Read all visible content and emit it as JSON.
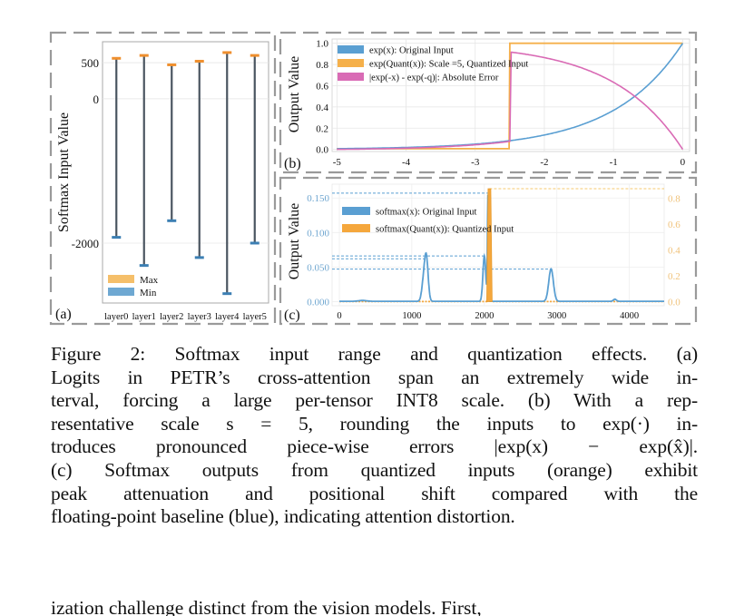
{
  "figure": {
    "panels": {
      "a": {
        "label": "(a)"
      },
      "b": {
        "label": "(b)"
      },
      "c": {
        "label": "(c)"
      }
    },
    "colors": {
      "blue": "#5a9fd2",
      "orange": "#f5a73c",
      "pink": "#d96bb5",
      "whisker": "#4a5560",
      "dash_border": "#9a9a9a",
      "grid": "#e6e6e6",
      "c_left_tick": "#6fa6d0",
      "c_right_tick": "#f0c27a"
    }
  },
  "chart_data": [
    {
      "id": "a",
      "type": "errorbar",
      "title": "",
      "xlabel": "",
      "ylabel": "Softmax Input Value",
      "categories": [
        "layer0",
        "layer1",
        "layer2",
        "layer3",
        "layer4",
        "layer5"
      ],
      "series": [
        {
          "name": "Max",
          "color": "#f5a73c",
          "values": [
            560,
            600,
            470,
            520,
            640,
            600
          ]
        },
        {
          "name": "Min",
          "color": "#4e8fc0",
          "values": [
            -1920,
            -2310,
            -1690,
            -2200,
            -2700,
            -2000
          ]
        }
      ],
      "yticks": [
        500,
        0,
        -2000
      ],
      "ytick_labels": [
        "500",
        "0",
        "-2000"
      ],
      "ylim": [
        -2830,
        790
      ],
      "grid": true,
      "legend": {
        "position": "bottom-left",
        "entries": [
          "Max",
          "Min"
        ]
      }
    },
    {
      "id": "b",
      "type": "line",
      "title": "",
      "xlabel": "",
      "ylabel": "Output Value",
      "xlim": [
        -5.07,
        0.1
      ],
      "ylim": [
        -0.02,
        1.04
      ],
      "xticks": [
        -5,
        -4,
        -3,
        -2,
        -1,
        0
      ],
      "xtick_labels": [
        "-5",
        "-4",
        "-3",
        "-2",
        "-1",
        "0"
      ],
      "yticks": [
        0.0,
        0.2,
        0.4,
        0.6,
        0.8,
        1.0
      ],
      "ytick_labels": [
        "0.0",
        "0.2",
        "0.4",
        "0.6",
        "0.8",
        "1.0"
      ],
      "grid": true,
      "series": [
        {
          "name": "exp(x): Original Input",
          "color": "#5a9fd2",
          "function": "exp(x)",
          "x": [
            -5,
            -4.5,
            -4,
            -3.5,
            -3,
            -2.5,
            -2,
            -1.5,
            -1,
            -0.5,
            0
          ],
          "y": [
            0.0067,
            0.0111,
            0.0183,
            0.0302,
            0.0498,
            0.0821,
            0.1353,
            0.2231,
            0.3679,
            0.6065,
            1.0
          ]
        },
        {
          "name": "exp(Quant(x)): Scale =5, Quantized Input",
          "color": "#f5b04a",
          "function": "step",
          "x": [
            -5,
            -2.51,
            -2.5,
            0
          ],
          "y": [
            0.0067,
            0.0067,
            1.0,
            1.0
          ]
        },
        {
          "name": "|exp(-x) - exp(-q)|: Absolute Error",
          "color": "#d96bb5",
          "function": "abs-error",
          "x": [
            -5,
            -4,
            -3,
            -2.51,
            -2.5,
            -2,
            -1.5,
            -1,
            -0.5,
            0
          ],
          "y": [
            0.0,
            0.0116,
            0.0431,
            0.0747,
            0.918,
            0.865,
            0.777,
            0.632,
            0.393,
            0.0
          ]
        }
      ],
      "legend": {
        "position": "top-left",
        "entries": [
          "exp(x): Original Input",
          "exp(Quant(x)): Scale =5, Quantized Input",
          "|exp(-x) - exp(-q)|: Absolute Error"
        ]
      }
    },
    {
      "id": "c",
      "type": "line",
      "title": "",
      "xlabel": "",
      "ylabel": "Output Value",
      "xlim": [
        -100,
        4480
      ],
      "ylim_left": [
        -0.006,
        0.17
      ],
      "ylim_right": [
        -0.032,
        0.91
      ],
      "xticks": [
        0,
        1000,
        2000,
        3000,
        4000
      ],
      "xtick_labels": [
        "0",
        "1000",
        "2000",
        "3000",
        "4000"
      ],
      "yticks_left": [
        0.0,
        0.05,
        0.1,
        0.15
      ],
      "ytick_labels_left": [
        "0.000",
        "0.050",
        "0.100",
        "0.150"
      ],
      "yticks_right": [
        0.0,
        0.2,
        0.4,
        0.6,
        0.8
      ],
      "ytick_labels_right": [
        "0.0",
        "0.2",
        "0.4",
        "0.6",
        "0.8"
      ],
      "grid": true,
      "series": [
        {
          "name": "softmax(x): Original Input",
          "color": "#5a9fd2",
          "axis": "left",
          "peaks": [
            {
              "x": 1200,
              "y": 0.062,
              "width": 35,
              "shoulder": 0.025
            },
            {
              "x": 2000,
              "y": 0.066,
              "width": 28,
              "shoulder": 0.0
            },
            {
              "x": 2050,
              "y": 0.157,
              "width": 10,
              "shoulder": 0.0
            },
            {
              "x": 2920,
              "y": 0.047,
              "width": 45,
              "shoulder": 0.0
            },
            {
              "x": 3800,
              "y": 0.003,
              "width": 30,
              "shoulder": 0.0
            },
            {
              "x": 320,
              "y": 0.0012,
              "width": 80,
              "shoulder": 0.0
            }
          ]
        },
        {
          "name": "softmax(Quant(x)): Quantized Input",
          "color": "#f5a73c",
          "axis": "right",
          "peaks": [
            {
              "x": 2070,
              "y": 0.875,
              "width": 12
            }
          ]
        }
      ],
      "reference_lines": [
        {
          "axis": "left",
          "y": 0.157,
          "x_end": 2050,
          "color": "#5a9fd2"
        },
        {
          "axis": "left",
          "y": 0.066,
          "x_end": 2000,
          "color": "#5a9fd2"
        },
        {
          "axis": "left",
          "y": 0.062,
          "x_end": 1200,
          "color": "#5a9fd2"
        },
        {
          "axis": "left",
          "y": 0.047,
          "x_end": 2920,
          "color": "#5a9fd2"
        },
        {
          "axis": "right",
          "y": 0.875,
          "x_start": 2070,
          "x_end": 4480,
          "color": "#f5c96e"
        }
      ],
      "legend": {
        "position": "top-left",
        "entries": [
          "softmax(x): Original Input",
          "softmax(Quant(x)): Quantized Input"
        ]
      }
    }
  ],
  "caption": {
    "lines": [
      "Figure 2: Softmax input range and quantization effects. (a)",
      "Logits in PETR’s cross-attention span an extremely wide in-",
      "terval, forcing a large per-tensor INT8 scale. (b) With a rep-",
      "resentative scale s = 5, rounding the inputs to exp(·) in-",
      "troduces pronounced piece-wise errors |exp(x) − exp(x̂)|.",
      "(c) Softmax outputs from quantized inputs (orange) exhibit",
      "peak attenuation and positional shift compared with the",
      "floating-point baseline (blue), indicating attention distortion."
    ],
    "next_paragraph_fragment": "ization challenge distinct from the vision models. First,"
  }
}
